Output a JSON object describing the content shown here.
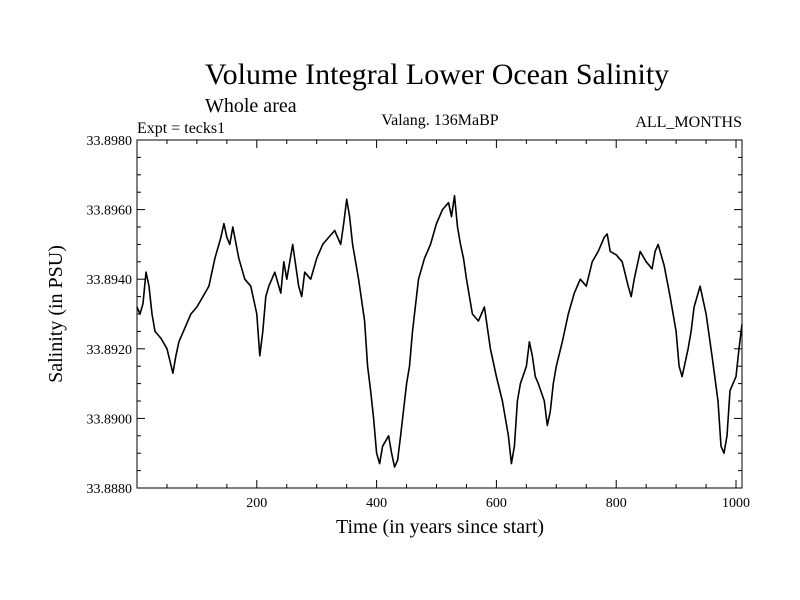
{
  "chart_data": {
    "type": "line",
    "title": "Volume Integral Lower Ocean Salinity",
    "subtitle": "Whole area",
    "expt_label": "Expt = tecks1",
    "center_label": "Valang. 136MaBP",
    "right_label": "ALL_MONTHS",
    "xlabel": "Time (in years since start)",
    "ylabel": "Salinity (in PSU)",
    "xlim": [
      0,
      1010
    ],
    "ylim": [
      33.888,
      33.898
    ],
    "xticks": [
      200,
      400,
      600,
      800,
      1000
    ],
    "yticks": [
      33.888,
      33.89,
      33.892,
      33.894,
      33.896,
      33.898
    ],
    "ytick_labels": [
      "33.8880",
      "33.8900",
      "33.8920",
      "33.8940",
      "33.8960",
      "33.8980"
    ],
    "series": [
      {
        "name": "salinity",
        "x": [
          0,
          5,
          10,
          15,
          20,
          25,
          30,
          40,
          50,
          60,
          65,
          70,
          80,
          90,
          100,
          110,
          120,
          130,
          140,
          145,
          150,
          155,
          160,
          170,
          180,
          190,
          200,
          205,
          210,
          215,
          220,
          230,
          240,
          245,
          250,
          260,
          270,
          275,
          280,
          290,
          300,
          310,
          320,
          330,
          340,
          345,
          350,
          355,
          360,
          370,
          380,
          385,
          390,
          395,
          400,
          405,
          410,
          420,
          425,
          430,
          435,
          440,
          450,
          455,
          460,
          470,
          480,
          490,
          500,
          510,
          520,
          525,
          530,
          535,
          540,
          545,
          550,
          560,
          570,
          580,
          590,
          600,
          610,
          620,
          625,
          630,
          635,
          640,
          650,
          655,
          660,
          665,
          670,
          680,
          685,
          690,
          695,
          700,
          710,
          720,
          730,
          740,
          750,
          760,
          770,
          780,
          785,
          790,
          800,
          810,
          820,
          825,
          830,
          840,
          850,
          860,
          865,
          870,
          880,
          890,
          900,
          905,
          910,
          920,
          925,
          930,
          940,
          950,
          960,
          970,
          975,
          980,
          985,
          990,
          1000,
          1005,
          1010
        ],
        "values": [
          33.8932,
          33.893,
          33.8933,
          33.8942,
          33.8938,
          33.893,
          33.8925,
          33.8923,
          33.892,
          33.8913,
          33.8918,
          33.8922,
          33.8926,
          33.893,
          33.8932,
          33.8935,
          33.8938,
          33.8946,
          33.8952,
          33.8956,
          33.8952,
          33.895,
          33.8955,
          33.8946,
          33.894,
          33.8938,
          33.893,
          33.8918,
          33.8925,
          33.8935,
          33.8938,
          33.8942,
          33.8936,
          33.8945,
          33.894,
          33.895,
          33.8938,
          33.8935,
          33.8942,
          33.894,
          33.8946,
          33.895,
          33.8952,
          33.8954,
          33.895,
          33.8956,
          33.8963,
          33.8958,
          33.895,
          33.894,
          33.8928,
          33.8915,
          33.8908,
          33.89,
          33.889,
          33.8887,
          33.8892,
          33.8895,
          33.889,
          33.8886,
          33.8888,
          33.8895,
          33.891,
          33.8915,
          33.8925,
          33.894,
          33.8946,
          33.895,
          33.8956,
          33.896,
          33.8962,
          33.8958,
          33.8964,
          33.8955,
          33.895,
          33.8946,
          33.894,
          33.893,
          33.8928,
          33.8932,
          33.892,
          33.8912,
          33.8905,
          33.8895,
          33.8887,
          33.8892,
          33.8905,
          33.891,
          33.8915,
          33.8922,
          33.8918,
          33.8912,
          33.891,
          33.8905,
          33.8898,
          33.8902,
          33.891,
          33.8915,
          33.8922,
          33.893,
          33.8936,
          33.894,
          33.8938,
          33.8945,
          33.8948,
          33.8952,
          33.8953,
          33.8948,
          33.8947,
          33.8945,
          33.8938,
          33.8935,
          33.894,
          33.8948,
          33.8945,
          33.8943,
          33.8948,
          33.895,
          33.8944,
          33.8935,
          33.8925,
          33.8915,
          33.8912,
          33.892,
          33.8925,
          33.8932,
          33.8938,
          33.893,
          33.8918,
          33.8905,
          33.8892,
          33.889,
          33.8895,
          33.8908,
          33.8912,
          33.892,
          33.8927
        ]
      }
    ]
  }
}
